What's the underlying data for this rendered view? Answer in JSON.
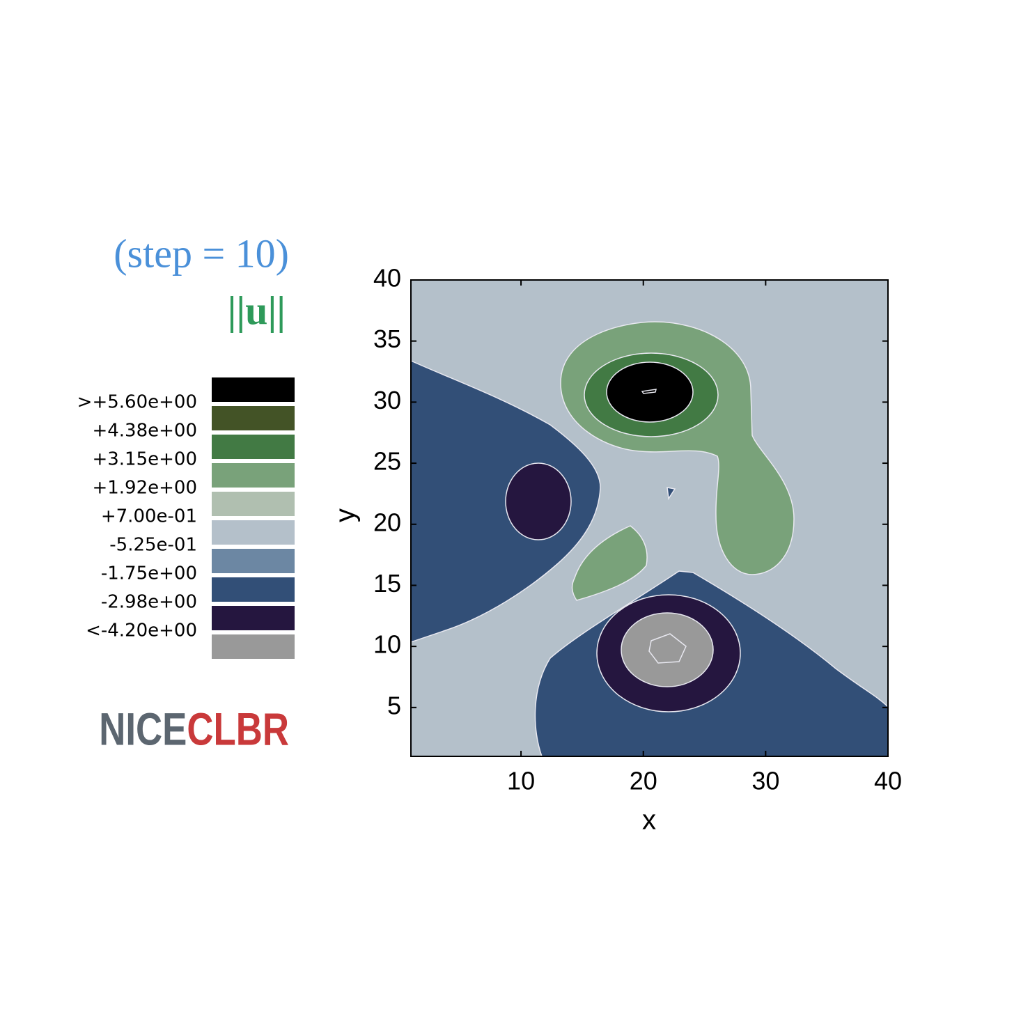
{
  "chart_data": {
    "type": "contour",
    "title": "(step = 10)",
    "subtitle": "||u||",
    "x_label": "x",
    "y_label": "y",
    "xlim": [
      1,
      40
    ],
    "ylim": [
      1,
      40
    ],
    "xticks": [
      10,
      20,
      30,
      40
    ],
    "yticks": [
      5,
      10,
      15,
      20,
      25,
      30,
      35,
      40
    ],
    "levels": [
      {
        "value": 5.6,
        "label": ">+5.60e+00"
      },
      {
        "value": 4.38,
        "label": "+4.38e+00"
      },
      {
        "value": 3.15,
        "label": "+3.15e+00"
      },
      {
        "value": 1.92,
        "label": "+1.92e+00"
      },
      {
        "value": 0.7,
        "label": "+7.00e-01"
      },
      {
        "value": -0.525,
        "label": "-5.25e-01"
      },
      {
        "value": -1.75,
        "label": "-1.75e+00"
      },
      {
        "value": -2.98,
        "label": "-2.98e+00"
      },
      {
        "value": -4.2,
        "label": "<-4.20e+00"
      }
    ],
    "colors": [
      "#000000",
      "#435326",
      "#427a44",
      "#79a27a",
      "#b0bfb0",
      "#b4c0ca",
      "#6c87a3",
      "#324f77",
      "#25163f",
      "#999999"
    ],
    "logo": {
      "part1": "NICE",
      "part2": "CLBR"
    }
  }
}
